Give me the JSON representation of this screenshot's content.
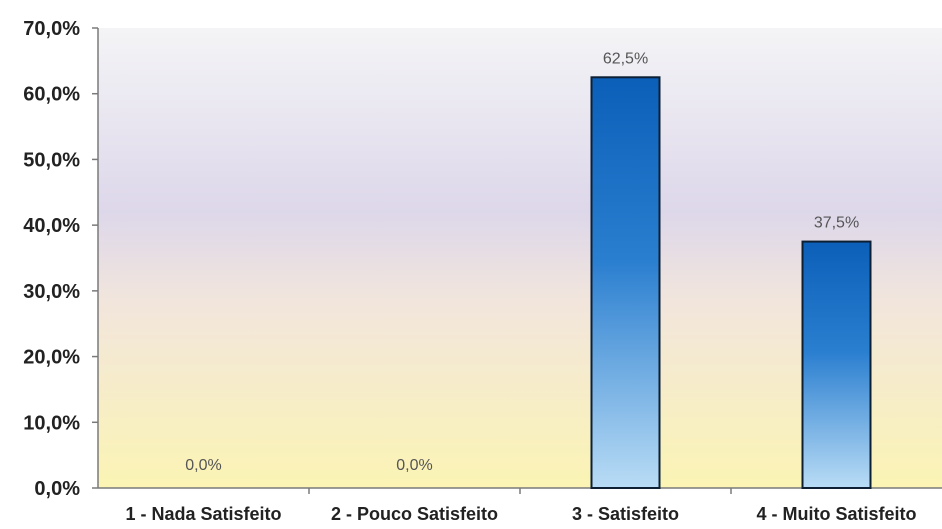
{
  "chart_data": {
    "type": "bar",
    "categories": [
      "1 - Nada Satisfeito",
      "2 - Pouco Satisfeito",
      "3 - Satisfeito",
      "4 - Muito Satisfeito"
    ],
    "values": [
      0.0,
      0.0,
      62.5,
      37.5
    ],
    "data_labels": [
      "0,0%",
      "0,0%",
      "62,5%",
      "37,5%"
    ],
    "y_ticks": [
      0,
      10,
      20,
      30,
      40,
      50,
      60,
      70
    ],
    "y_tick_labels": [
      "0,0%",
      "10,0%",
      "20,0%",
      "30,0%",
      "40,0%",
      "50,0%",
      "60,0%",
      "70,0%"
    ],
    "ylim": [
      0,
      70
    ],
    "title": "",
    "xlabel": "",
    "ylabel": "",
    "grid": false,
    "legend": "none",
    "colors": {
      "bar_top": "#0b5fb8",
      "bar_bottom": "#b9dcf5",
      "bar_border": "#0d1f33",
      "plot_top": "#f4f4f6",
      "plot_mid": "#ddd7ea",
      "plot_bottom": "#fbf4b4",
      "axis": "#7a7a7a",
      "text": "#222222",
      "label_text": "#555555"
    }
  }
}
